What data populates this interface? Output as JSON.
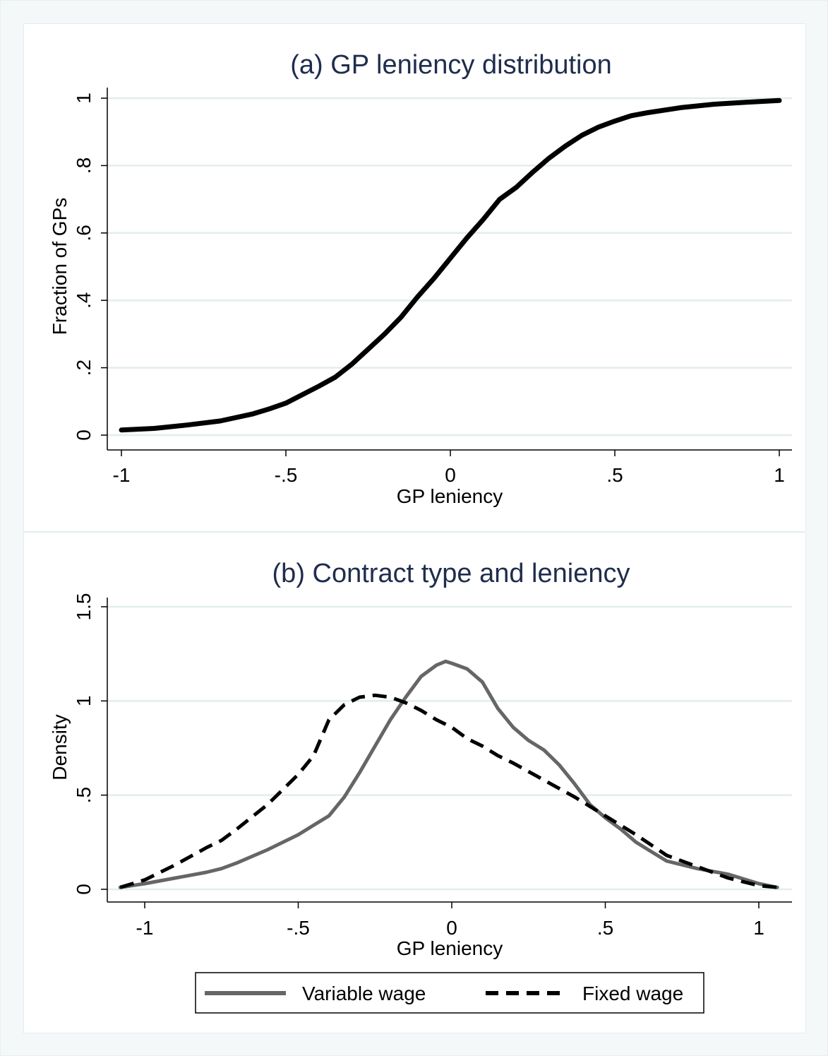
{
  "chart_data": [
    {
      "type": "line",
      "title": "(a) GP leniency distribution",
      "xlabel": "GP leniency",
      "ylabel": "Fraction of GPs",
      "xlim": [
        -1,
        1
      ],
      "ylim": [
        0,
        1
      ],
      "xticks": [
        -1,
        -0.5,
        0,
        0.5,
        1
      ],
      "xtick_labels": [
        "-1",
        "-.5",
        "0",
        ".5",
        "1"
      ],
      "yticks": [
        0,
        0.2,
        0.4,
        0.6,
        0.8,
        1
      ],
      "ytick_labels": [
        "0",
        ".2",
        ".4",
        ".6",
        ".8",
        "1"
      ],
      "grid": true,
      "series": [
        {
          "color": "#000000",
          "style": "solid",
          "x": [
            -1.0,
            -0.9,
            -0.8,
            -0.7,
            -0.6,
            -0.55,
            -0.5,
            -0.45,
            -0.4,
            -0.35,
            -0.3,
            -0.25,
            -0.2,
            -0.15,
            -0.1,
            -0.05,
            0.0,
            0.05,
            0.1,
            0.15,
            0.2,
            0.25,
            0.3,
            0.35,
            0.4,
            0.45,
            0.5,
            0.55,
            0.6,
            0.7,
            0.8,
            0.9,
            1.0
          ],
          "values": [
            0.015,
            0.02,
            0.03,
            0.042,
            0.063,
            0.078,
            0.095,
            0.12,
            0.145,
            0.172,
            0.21,
            0.255,
            0.3,
            0.35,
            0.41,
            0.465,
            0.525,
            0.585,
            0.64,
            0.7,
            0.735,
            0.78,
            0.822,
            0.858,
            0.89,
            0.914,
            0.932,
            0.948,
            0.957,
            0.972,
            0.982,
            0.988,
            0.993
          ]
        }
      ]
    },
    {
      "type": "line",
      "title": "(b) Contract type and leniency",
      "xlabel": "GP leniency",
      "ylabel": "Density",
      "xlim": [
        -1.1,
        1.1
      ],
      "ylim": [
        0,
        1.5
      ],
      "xticks": [
        -1,
        -0.5,
        0,
        0.5,
        1
      ],
      "xtick_labels": [
        "-1",
        "-.5",
        "0",
        ".5",
        "1"
      ],
      "yticks": [
        0,
        0.5,
        1,
        1.5
      ],
      "ytick_labels": [
        "0",
        ".5",
        "1",
        "1.5"
      ],
      "grid": true,
      "legend": "bottom",
      "series": [
        {
          "name": "Variable wage",
          "color": "#666666",
          "style": "solid",
          "x": [
            -1.08,
            -1.0,
            -0.9,
            -0.8,
            -0.75,
            -0.7,
            -0.6,
            -0.5,
            -0.45,
            -0.4,
            -0.35,
            -0.3,
            -0.25,
            -0.2,
            -0.15,
            -0.1,
            -0.05,
            -0.02,
            0.0,
            0.05,
            0.1,
            0.15,
            0.2,
            0.25,
            0.3,
            0.35,
            0.4,
            0.45,
            0.5,
            0.55,
            0.6,
            0.65,
            0.7,
            0.8,
            0.9,
            1.0,
            1.06
          ],
          "values": [
            0.01,
            0.03,
            0.06,
            0.09,
            0.11,
            0.14,
            0.21,
            0.29,
            0.34,
            0.39,
            0.49,
            0.62,
            0.76,
            0.9,
            1.02,
            1.13,
            1.19,
            1.21,
            1.2,
            1.17,
            1.1,
            0.96,
            0.86,
            0.79,
            0.74,
            0.66,
            0.56,
            0.45,
            0.38,
            0.32,
            0.25,
            0.2,
            0.15,
            0.11,
            0.08,
            0.03,
            0.01
          ]
        },
        {
          "name": "Fixed wage",
          "color": "#000000",
          "style": "dashed",
          "x": [
            -1.08,
            -1.0,
            -0.9,
            -0.8,
            -0.75,
            -0.7,
            -0.6,
            -0.55,
            -0.5,
            -0.45,
            -0.4,
            -0.35,
            -0.3,
            -0.25,
            -0.2,
            -0.15,
            -0.1,
            -0.05,
            0.0,
            0.05,
            0.1,
            0.15,
            0.2,
            0.3,
            0.4,
            0.5,
            0.6,
            0.7,
            0.8,
            0.9,
            1.0,
            1.06
          ],
          "values": [
            0.01,
            0.05,
            0.13,
            0.22,
            0.26,
            0.32,
            0.45,
            0.53,
            0.61,
            0.71,
            0.9,
            0.98,
            1.02,
            1.03,
            1.02,
            0.99,
            0.95,
            0.9,
            0.86,
            0.8,
            0.76,
            0.71,
            0.67,
            0.58,
            0.49,
            0.39,
            0.29,
            0.18,
            0.12,
            0.06,
            0.02,
            0.01
          ]
        }
      ]
    }
  ]
}
